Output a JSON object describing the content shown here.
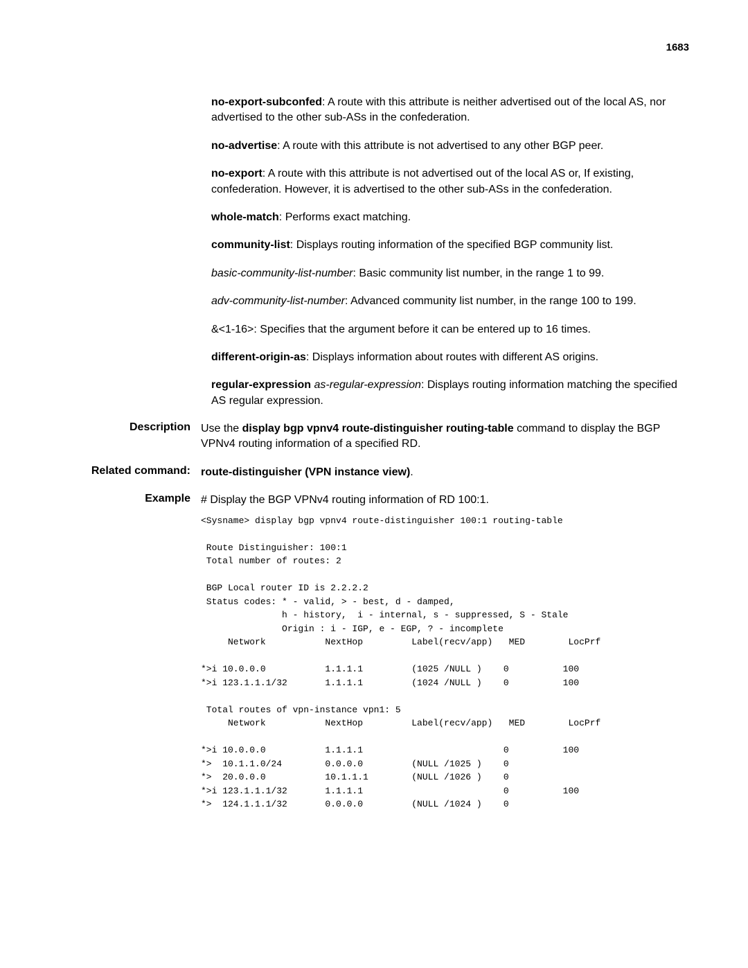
{
  "page_number": "1683",
  "paragraphs": {
    "p1_bold": "no-export-subconfed",
    "p1_text": ": A route with this attribute is neither advertised out of the local AS, nor advertised to the other sub-ASs in the confederation.",
    "p2_bold": "no-advertise",
    "p2_text": ": A route with this attribute is not advertised to any other BGP peer.",
    "p3_bold": "no-export",
    "p3_text": ": A route with this attribute is not advertised out of the local AS or, If existing, confederation. However, it is advertised to the other sub-ASs in the confederation.",
    "p4_bold": "whole-match",
    "p4_text": ": Performs exact matching.",
    "p5_bold": "community-list",
    "p5_text": ": Displays routing information of the specified BGP community list.",
    "p6_italic": "basic-community-list-number",
    "p6_text": ": Basic community list number, in the range 1 to 99.",
    "p7_italic": "adv-community-list-number",
    "p7_text": ": Advanced community list number, in the range 100 to 199.",
    "p8_text": "&<1-16>: Specifies that the argument before it can be entered up to 16 times.",
    "p9_bold": "different-origin-as",
    "p9_text": ": Displays information about routes with different AS origins.",
    "p10_bold": "regular-expression",
    "p10_italic": " as-regular-expression",
    "p10_text": ": Displays routing information matching the specified AS regular expression."
  },
  "description": {
    "label": "Description",
    "prefix": "Use the ",
    "cmd": "display bgp vpnv4 route-distinguisher routing-table",
    "suffix": " command to display the BGP VPNv4 routing information of a specified RD."
  },
  "related": {
    "label": "Related command:",
    "cmd": "route-distinguisher (VPN instance view)",
    "suffix": "."
  },
  "example": {
    "label": "Example",
    "intro": "# Display the BGP VPNv4 routing information of RD 100:1.",
    "code": "<Sysname> display bgp vpnv4 route-distinguisher 100:1 routing-table\n\n Route Distinguisher: 100:1\n Total number of routes: 2\n\n BGP Local router ID is 2.2.2.2\n Status codes: * - valid, > - best, d - damped,\n               h - history,  i - internal, s - suppressed, S - Stale\n               Origin : i - IGP, e - EGP, ? - incomplete\n     Network           NextHop         Label(recv/app)   MED        LocPrf\n\n*>i 10.0.0.0           1.1.1.1         (1025 /NULL )    0          100\n*>i 123.1.1.1/32       1.1.1.1         (1024 /NULL )    0          100\n\n Total routes of vpn-instance vpn1: 5\n     Network           NextHop         Label(recv/app)   MED        LocPrf\n\n*>i 10.0.0.0           1.1.1.1                          0          100\n*>  10.1.1.0/24        0.0.0.0         (NULL /1025 )    0\n*>  20.0.0.0           10.1.1.1        (NULL /1026 )    0\n*>i 123.1.1.1/32       1.1.1.1                          0          100\n*>  124.1.1.1/32       0.0.0.0         (NULL /1024 )    0"
  }
}
